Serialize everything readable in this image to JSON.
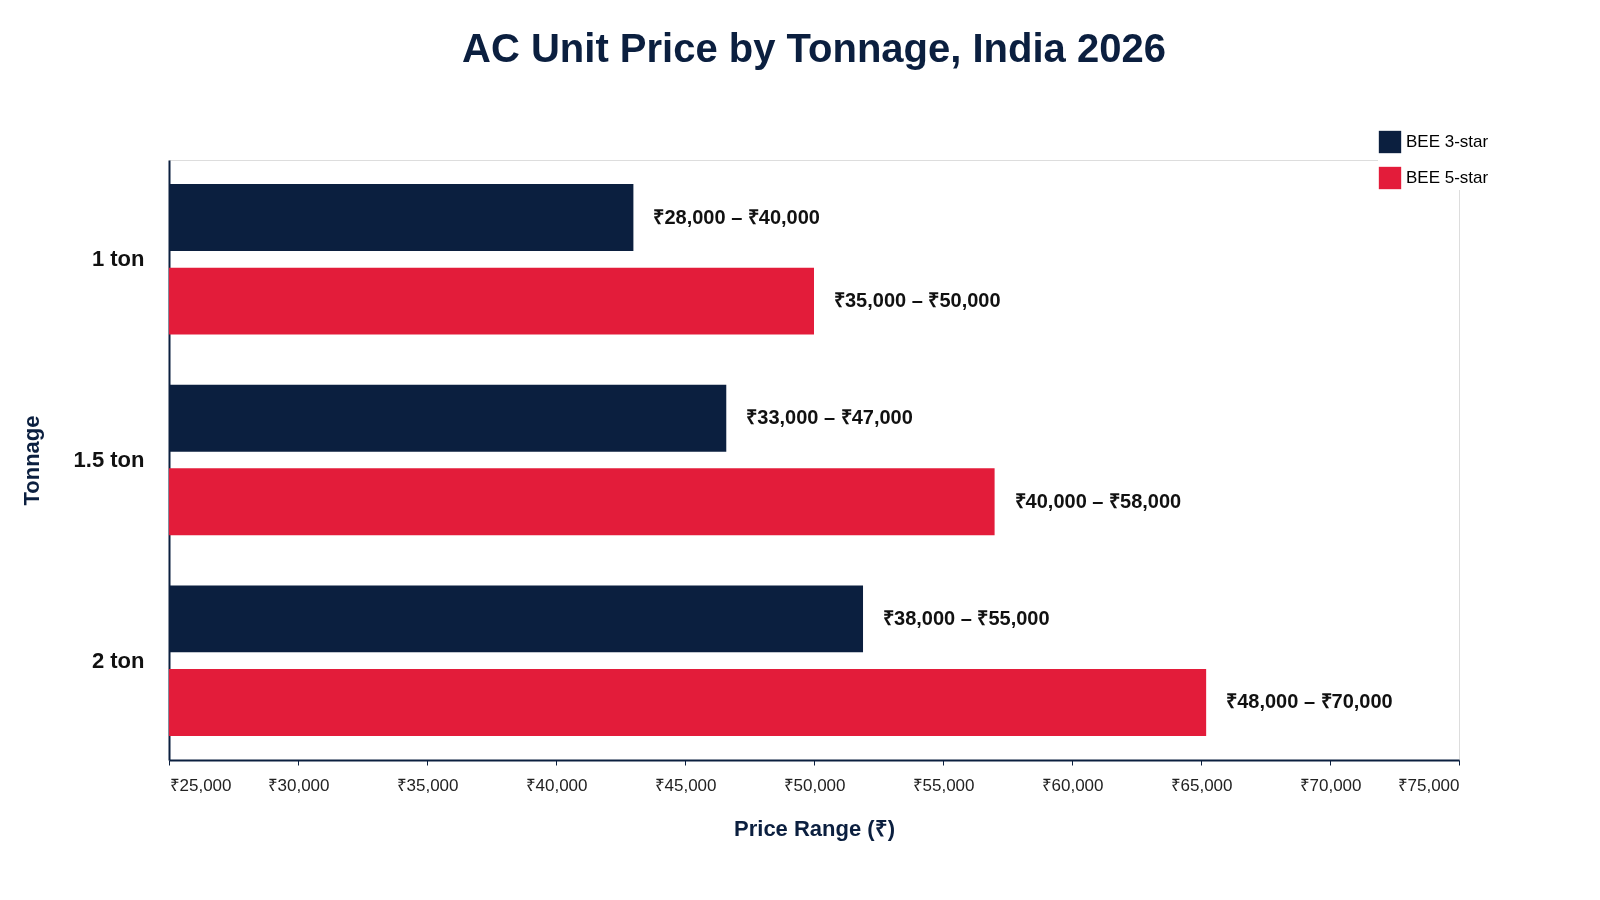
{
  "chart_data": {
    "type": "bar",
    "title": "AC Unit Price by Tonnage, India 2026",
    "orientation": "horizontal",
    "xlabel": "Price Range (₹)",
    "ylabel": "Tonnage",
    "categories": [
      "1 ton",
      "1.5 ton",
      "2 ton"
    ],
    "series": [
      {
        "name": "BEE 3-star",
        "color": "#0b1f3f",
        "values": [
          43000,
          46600,
          51900
        ],
        "value_labels": [
          "₹28,000 – ₹40,000",
          "₹33,000 – ₹47,000",
          "₹38,000 – ₹55,000"
        ]
      },
      {
        "name": "BEE 5-star",
        "color": "#e31c3a",
        "values": [
          50000,
          57000,
          65200
        ],
        "value_labels": [
          "₹35,000 – ₹50,000",
          "₹40,000 – ₹58,000",
          "₹48,000 – ₹70,000"
        ]
      }
    ],
    "xlim": [
      25000,
      75000
    ],
    "xticks": [
      {
        "value": 25000,
        "label": "₹25,000"
      },
      {
        "value": 30000,
        "label": "₹30,000"
      },
      {
        "value": 35000,
        "label": "₹35,000"
      },
      {
        "value": 40000,
        "label": "₹40,000"
      },
      {
        "value": 45000,
        "label": "₹45,000"
      },
      {
        "value": 50000,
        "label": "₹50,000"
      },
      {
        "value": 55000,
        "label": "₹55,000"
      },
      {
        "value": 60000,
        "label": "₹60,000"
      },
      {
        "value": 65000,
        "label": "₹65,000"
      },
      {
        "value": 70000,
        "label": "₹70,000"
      },
      {
        "value": 75000,
        "label": "₹75,000"
      }
    ],
    "legend": "top right",
    "grid": false
  }
}
